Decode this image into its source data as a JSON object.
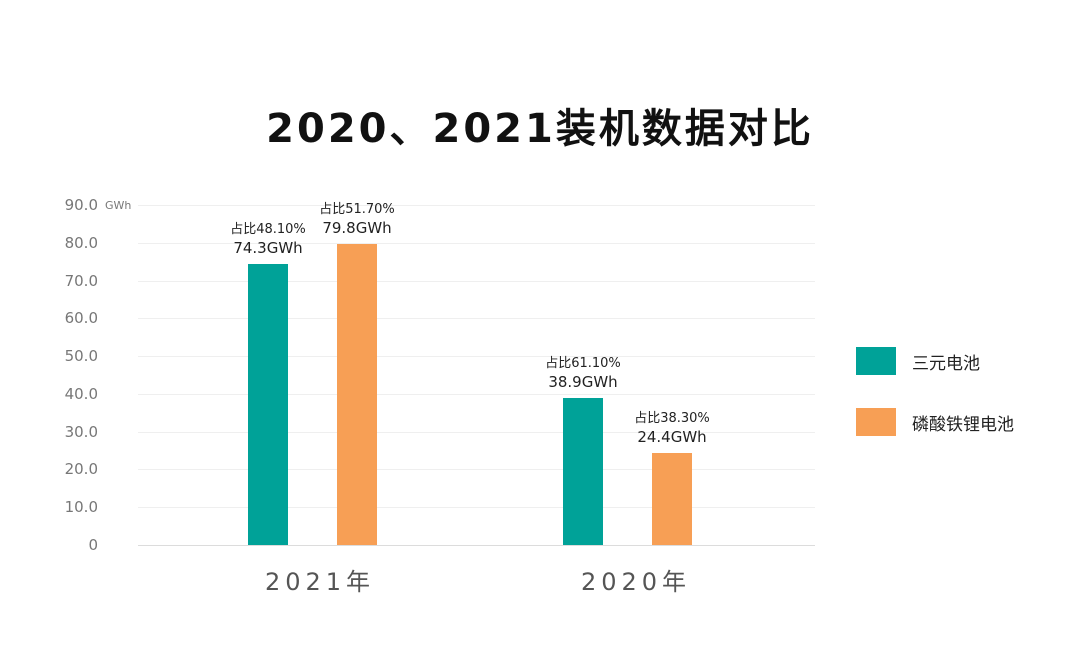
{
  "title": "2020、2021装机数据对比",
  "colors": {
    "ternary": "#00a298",
    "lfp": "#f79f55"
  },
  "y_axis": {
    "unit": "GWh",
    "ticks": [
      "0",
      "10.0",
      "20.0",
      "30.0",
      "40.0",
      "50.0",
      "60.0",
      "70.0",
      "80.0",
      "90.0"
    ]
  },
  "legend": [
    {
      "label": "三元电池",
      "color": "#00a298"
    },
    {
      "label": "磷酸铁锂电池",
      "color": "#f79f55"
    }
  ],
  "groups": [
    {
      "category": "2021年",
      "bars": [
        {
          "series": "三元电池",
          "value": 74.3,
          "value_label": "74.3GWh",
          "share_label": "占比48.10%"
        },
        {
          "series": "磷酸铁锂电池",
          "value": 79.8,
          "value_label": "79.8GWh",
          "share_label": "占比51.70%"
        }
      ]
    },
    {
      "category": "2020年",
      "bars": [
        {
          "series": "三元电池",
          "value": 38.9,
          "value_label": "38.9GWh",
          "share_label": "占比61.10%"
        },
        {
          "series": "磷酸铁锂电池",
          "value": 24.4,
          "value_label": "24.4GWh",
          "share_label": "占比38.30%"
        }
      ]
    }
  ],
  "chart_data": {
    "type": "bar",
    "title": "2020、2021装机数据对比",
    "categories": [
      "2021年",
      "2020年"
    ],
    "series": [
      {
        "name": "三元电池",
        "values": [
          74.3,
          38.9
        ],
        "shares": [
          "48.10%",
          "61.10%"
        ],
        "color": "#00a298"
      },
      {
        "name": "磷酸铁锂电池",
        "values": [
          79.8,
          24.4
        ],
        "shares": [
          "51.70%",
          "38.30%"
        ],
        "color": "#f79f55"
      }
    ],
    "xlabel": "",
    "ylabel": "GWh",
    "ylim": [
      0,
      90
    ],
    "yticks": [
      0,
      10,
      20,
      30,
      40,
      50,
      60,
      70,
      80,
      90
    ],
    "grid": true,
    "legend_position": "right"
  }
}
